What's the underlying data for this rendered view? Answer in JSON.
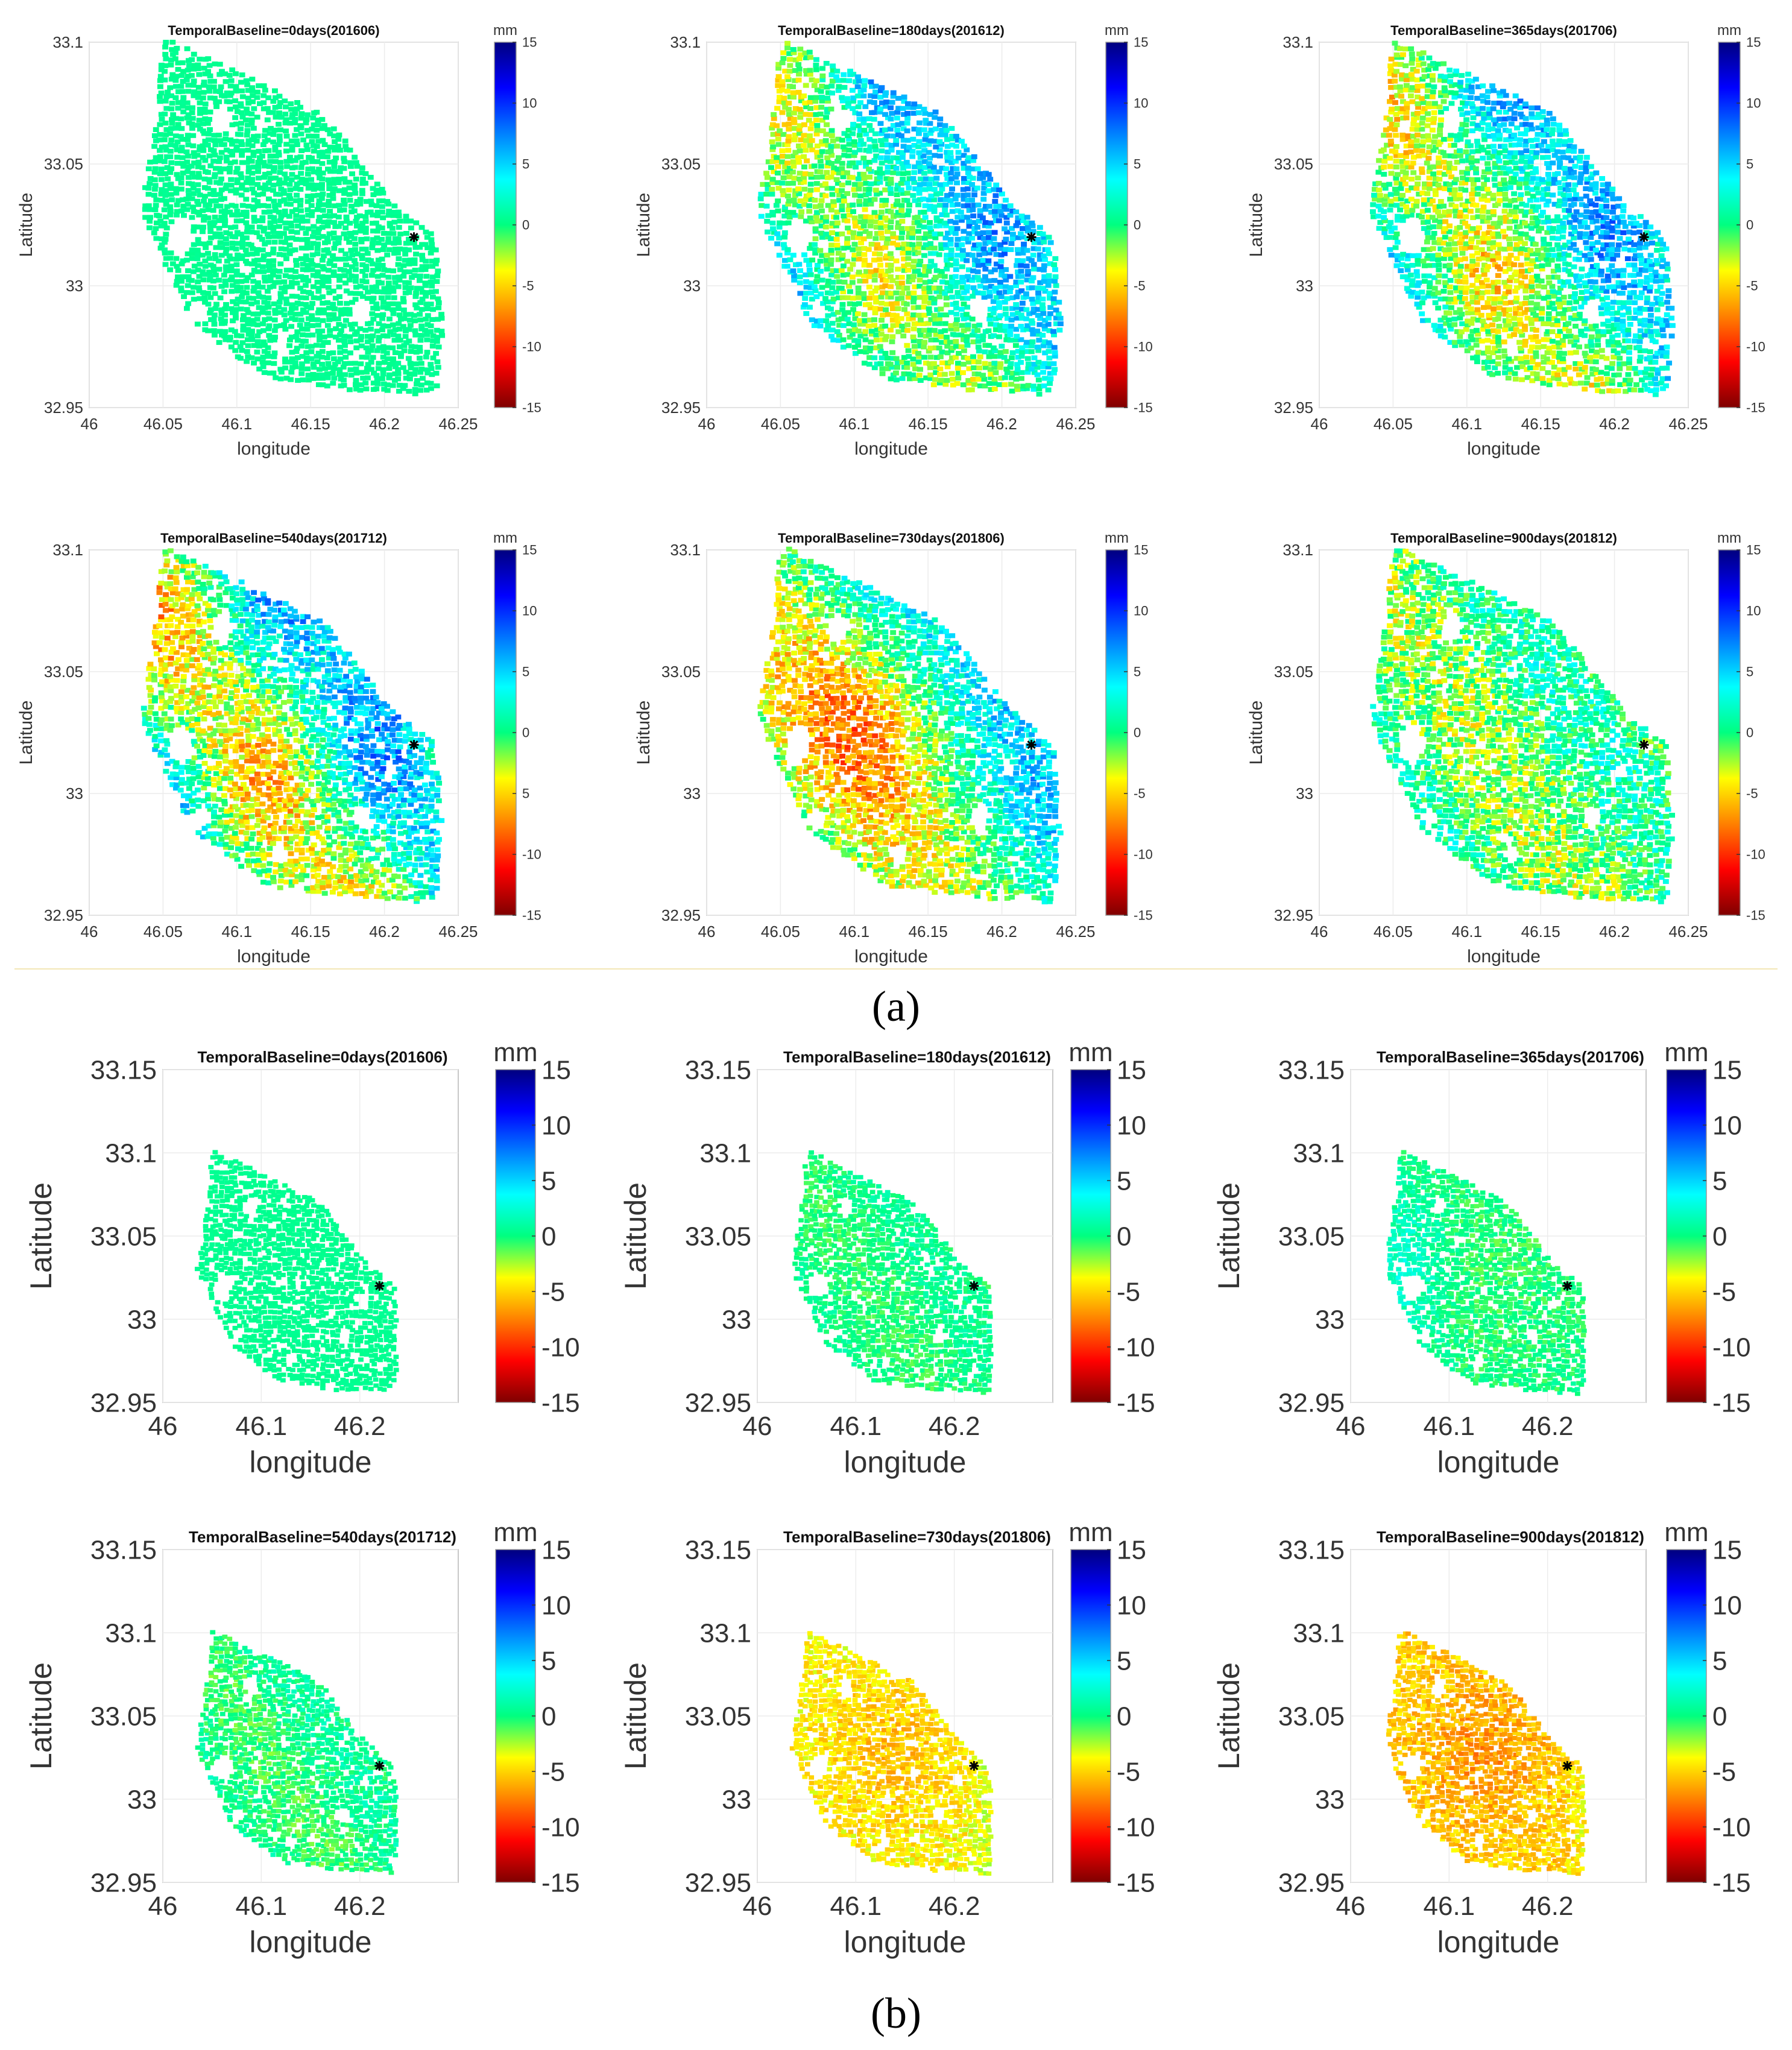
{
  "figure_labels": {
    "a": "(a)",
    "b": "(b)"
  },
  "colormap": {
    "stops": [
      "#7f0000",
      "#ff0000",
      "#ff8000",
      "#ffff00",
      "#00ff80",
      "#00ffff",
      "#0080ff",
      "#0000ff",
      "#00007f"
    ],
    "marker_color": "#000000"
  },
  "chart_data": [
    {
      "type": "heatmap",
      "panel": "a",
      "title": "TemporalBaseline=0days(201606)",
      "xlabel": "longitude",
      "ylabel": "Latitude",
      "xlim": [
        46,
        46.25
      ],
      "ylim": [
        32.95,
        33.1
      ],
      "xticks": [
        46,
        46.05,
        46.1,
        46.15,
        46.2,
        46.25
      ],
      "xticklabels": [
        "46",
        "46.05",
        "46.1",
        "46.15",
        "46.2",
        "46.25"
      ],
      "yticks": [
        32.95,
        33,
        33.05,
        33.1
      ],
      "yticklabels": [
        "32.95",
        "33",
        "33.05",
        "33.1"
      ],
      "colorbar": {
        "label": "mm",
        "range": [
          -15,
          15
        ],
        "ticks": [
          15,
          10,
          5,
          0,
          -5,
          -10,
          -15
        ],
        "ticklabels": [
          "15",
          "10",
          "5",
          "0",
          "-5",
          "-10",
          "-15"
        ]
      },
      "reference_point": [
        46.22,
        33.02
      ],
      "pattern": "uniform",
      "mean_mm": 0.5,
      "spread_mm": 0.3
    },
    {
      "type": "heatmap",
      "panel": "a",
      "title": "TemporalBaseline=180days(201612)",
      "xlabel": "longitude",
      "ylabel": "Latitude",
      "xlim": [
        46,
        46.25
      ],
      "ylim": [
        32.95,
        33.1
      ],
      "xticks": [
        46,
        46.05,
        46.1,
        46.15,
        46.2,
        46.25
      ],
      "xticklabels": [
        "46",
        "46.05",
        "46.1",
        "46.15",
        "46.2",
        "46.25"
      ],
      "yticks": [
        32.95,
        33,
        33.05,
        33.1
      ],
      "yticklabels": [
        "32.95",
        "33",
        "33.05",
        "33.1"
      ],
      "colorbar": {
        "label": "mm",
        "range": [
          -15,
          15
        ],
        "ticks": [
          15,
          10,
          5,
          0,
          -5,
          -10,
          -15
        ],
        "ticklabels": [
          "15",
          "10",
          "5",
          "0",
          "-5",
          "-10",
          "-15"
        ]
      },
      "reference_point": [
        46.22,
        33.02
      ],
      "pattern": "bands",
      "mean_mm": 1.5,
      "spread_mm": 4.5
    },
    {
      "type": "heatmap",
      "panel": "a",
      "title": "TemporalBaseline=365days(201706)",
      "xlabel": "longitude",
      "ylabel": "Latitude",
      "xlim": [
        46,
        46.25
      ],
      "ylim": [
        32.95,
        33.1
      ],
      "xticks": [
        46,
        46.05,
        46.1,
        46.15,
        46.2,
        46.25
      ],
      "xticklabels": [
        "46",
        "46.05",
        "46.1",
        "46.15",
        "46.2",
        "46.25"
      ],
      "yticks": [
        32.95,
        33,
        33.05,
        33.1
      ],
      "yticklabels": [
        "32.95",
        "33",
        "33.05",
        "33.1"
      ],
      "colorbar": {
        "label": "mm",
        "range": [
          -15,
          15
        ],
        "ticks": [
          15,
          10,
          5,
          0,
          -5,
          -10,
          -15
        ],
        "ticklabels": [
          "15",
          "10",
          "5",
          "0",
          "-5",
          "-10",
          "-15"
        ]
      },
      "reference_point": [
        46.22,
        33.02
      ],
      "pattern": "bands",
      "mean_mm": 1.0,
      "spread_mm": 5.0
    },
    {
      "type": "heatmap",
      "panel": "a",
      "title": "TemporalBaseline=540days(201712)",
      "xlabel": "longitude",
      "ylabel": "Latitude",
      "xlim": [
        46,
        46.25
      ],
      "ylim": [
        32.95,
        33.1
      ],
      "xticks": [
        46,
        46.05,
        46.1,
        46.15,
        46.2,
        46.25
      ],
      "xticklabels": [
        "46",
        "46.05",
        "46.1",
        "46.15",
        "46.2",
        "46.25"
      ],
      "yticks": [
        32.95,
        33,
        33.05,
        33.1
      ],
      "yticklabels": [
        "32.95",
        "33",
        "33.05",
        "33.1"
      ],
      "colorbar": {
        "label": "mm",
        "range": [
          -15,
          15
        ],
        "ticks": [
          15,
          10,
          5,
          0,
          5,
          -10,
          -15
        ],
        "ticklabels": [
          "15",
          "10",
          "5",
          "0",
          "5",
          "-10",
          "-15"
        ]
      },
      "reference_point": [
        46.22,
        33.02
      ],
      "pattern": "bands",
      "mean_mm": 0.5,
      "spread_mm": 5.5
    },
    {
      "type": "heatmap",
      "panel": "a",
      "title": "TemporalBaseline=730days(201806)",
      "xlabel": "longitude",
      "ylabel": "Latitude",
      "xlim": [
        46,
        46.25
      ],
      "ylim": [
        32.95,
        33.1
      ],
      "xticks": [
        46,
        46.05,
        46.1,
        46.15,
        46.2,
        46.25
      ],
      "xticklabels": [
        "46",
        "46.05",
        "46.1",
        "46.15",
        "46.2",
        "46.25"
      ],
      "yticks": [
        32.95,
        33,
        33.05,
        33.1
      ],
      "yticklabels": [
        "32.95",
        "33",
        "33.05",
        "33.1"
      ],
      "colorbar": {
        "label": "mm",
        "range": [
          -15,
          15
        ],
        "ticks": [
          15,
          10,
          5,
          0,
          -5,
          -10,
          -15
        ],
        "ticklabels": [
          "15",
          "10",
          "5",
          "0",
          "-5",
          "-10",
          "-15"
        ]
      },
      "reference_point": [
        46.22,
        33.02
      ],
      "pattern": "centre",
      "mean_mm": 1.0,
      "spread_mm": 5.0
    },
    {
      "type": "heatmap",
      "panel": "a",
      "title": "TemporalBaseline=900days(201812)",
      "xlabel": "longitude",
      "ylabel": "Latitude",
      "xlim": [
        46,
        46.25
      ],
      "ylim": [
        32.95,
        33.1
      ],
      "xticks": [
        46,
        46.05,
        46.1,
        46.15,
        46.2,
        46.25
      ],
      "xticklabels": [
        "46",
        "46.05",
        "46.1",
        "46.15",
        "46.2",
        "46.25"
      ],
      "yticks": [
        32.95,
        33,
        33.05,
        33.1
      ],
      "yticklabels": [
        "32.95",
        "33",
        "33.05",
        "33.1"
      ],
      "colorbar": {
        "label": "mm",
        "range": [
          -15,
          15
        ],
        "ticks": [
          15,
          10,
          5,
          0,
          -5,
          -10,
          -15
        ],
        "ticklabels": [
          "15",
          "10",
          "5",
          "0",
          "-5",
          "-10",
          "-15"
        ]
      },
      "reference_point": [
        46.22,
        33.02
      ],
      "pattern": "noisy",
      "mean_mm": -0.5,
      "spread_mm": 5.5
    },
    {
      "type": "heatmap",
      "panel": "b",
      "title": "TemporalBaseline=0days(201606)",
      "xlabel": "longitude",
      "ylabel": "Latitude",
      "xlim": [
        46,
        46.3
      ],
      "ylim": [
        32.95,
        33.15
      ],
      "xticks": [
        46,
        46.1,
        46.2
      ],
      "xticklabels": [
        "46",
        "46.1",
        "46.2"
      ],
      "yticks": [
        32.95,
        33,
        33.05,
        33.1,
        33.15
      ],
      "yticklabels": [
        "32.95",
        "33",
        "33.05",
        "33.1",
        "33.15"
      ],
      "colorbar": {
        "label": "mm",
        "range": [
          -15,
          15
        ],
        "ticks": [
          15,
          10,
          5,
          0,
          -5,
          -10,
          -15
        ],
        "ticklabels": [
          "15",
          "10",
          "5",
          "0",
          "-5",
          "-10",
          "-15"
        ]
      },
      "reference_point": [
        46.22,
        33.02
      ],
      "pattern": "uniform",
      "mean_mm": 0.5,
      "spread_mm": 0.3
    },
    {
      "type": "heatmap",
      "panel": "b",
      "title": "TemporalBaseline=180days(201612)",
      "xlabel": "longitude",
      "ylabel": "Latitude",
      "xlim": [
        46,
        46.3
      ],
      "ylim": [
        32.95,
        33.15
      ],
      "xticks": [
        46,
        46.1,
        46.2
      ],
      "xticklabels": [
        "46",
        "46.1",
        "46.2"
      ],
      "yticks": [
        32.95,
        33,
        33.05,
        33.1,
        33.15
      ],
      "yticklabels": [
        "32.95",
        "33",
        "33.05",
        "33.1",
        "33.15"
      ],
      "colorbar": {
        "label": "mm",
        "range": [
          -15,
          15
        ],
        "ticks": [
          15,
          10,
          5,
          0,
          -5,
          -10,
          -15
        ],
        "ticklabels": [
          "15",
          "10",
          "5",
          "0",
          "-5",
          "-10",
          "-15"
        ]
      },
      "reference_point": [
        46.22,
        33.02
      ],
      "pattern": "noisy",
      "mean_mm": 0.0,
      "spread_mm": 1.8
    },
    {
      "type": "heatmap",
      "panel": "b",
      "title": "TemporalBaseline=365days(201706)",
      "xlabel": "longitude",
      "ylabel": "Latitude",
      "xlim": [
        46,
        46.3
      ],
      "ylim": [
        32.95,
        33.15
      ],
      "xticks": [
        46,
        46.1,
        46.2
      ],
      "xticklabels": [
        "46",
        "46.1",
        "46.2"
      ],
      "yticks": [
        32.95,
        33,
        33.05,
        33.1,
        33.15
      ],
      "yticklabels": [
        "32.95",
        "33",
        "33.05",
        "33.1",
        "33.15"
      ],
      "colorbar": {
        "label": "mm",
        "range": [
          -15,
          15
        ],
        "ticks": [
          15,
          10,
          5,
          0,
          -5,
          -10,
          -15
        ],
        "ticklabels": [
          "15",
          "10",
          "5",
          "0",
          "-5",
          "-10",
          "-15"
        ]
      },
      "reference_point": [
        46.22,
        33.02
      ],
      "pattern": "west-high",
      "mean_mm": 0.0,
      "spread_mm": 2.2
    },
    {
      "type": "heatmap",
      "panel": "b",
      "title": "TemporalBaseline=540days(201712)",
      "xlabel": "longitude",
      "ylabel": "Latitude",
      "xlim": [
        46,
        46.3
      ],
      "ylim": [
        32.95,
        33.15
      ],
      "xticks": [
        46,
        46.1,
        46.2
      ],
      "xticklabels": [
        "46",
        "46.1",
        "46.2"
      ],
      "yticks": [
        32.95,
        33,
        33.05,
        33.1,
        33.15
      ],
      "yticklabels": [
        "32.95",
        "33",
        "33.05",
        "33.1",
        "33.15"
      ],
      "colorbar": {
        "label": "mm",
        "range": [
          -15,
          15
        ],
        "ticks": [
          15,
          10,
          5,
          0,
          -5,
          -10,
          -15
        ],
        "ticklabels": [
          "15",
          "10",
          "5",
          "0",
          "-5",
          "-10",
          "-15"
        ]
      },
      "reference_point": [
        46.22,
        33.02
      ],
      "pattern": "noisy",
      "mean_mm": 0.0,
      "spread_mm": 2.5
    },
    {
      "type": "heatmap",
      "panel": "b",
      "title": "TemporalBaseline=730days(201806)",
      "xlabel": "longitude",
      "ylabel": "Latitude",
      "xlim": [
        46,
        46.3
      ],
      "ylim": [
        32.95,
        33.15
      ],
      "xticks": [
        46,
        46.1,
        46.2
      ],
      "xticklabels": [
        "46",
        "46.1",
        "46.2"
      ],
      "yticks": [
        32.95,
        33,
        33.05,
        33.1,
        33.15
      ],
      "yticklabels": [
        "32.95",
        "33",
        "33.05",
        "33.1",
        "33.15"
      ],
      "colorbar": {
        "label": "mm",
        "range": [
          -15,
          15
        ],
        "ticks": [
          15,
          10,
          5,
          0,
          -5,
          -10,
          -15
        ],
        "ticklabels": [
          "15",
          "10",
          "5",
          "0",
          "-5",
          "-10",
          "-15"
        ]
      },
      "reference_point": [
        46.22,
        33.02
      ],
      "pattern": "centre-low",
      "mean_mm": -4.0,
      "spread_mm": 2.5
    },
    {
      "type": "heatmap",
      "panel": "b",
      "title": "TemporalBaseline=900days(201812)",
      "xlabel": "longitude",
      "ylabel": "Latitude",
      "xlim": [
        46,
        46.3
      ],
      "ylim": [
        32.95,
        33.15
      ],
      "xticks": [
        46,
        46.1,
        46.2
      ],
      "xticklabels": [
        "46",
        "46.1",
        "46.2"
      ],
      "yticks": [
        32.95,
        33,
        33.05,
        33.1,
        33.15
      ],
      "yticklabels": [
        "32.95",
        "33",
        "33.05",
        "33.1",
        "33.15"
      ],
      "colorbar": {
        "label": "mm",
        "range": [
          -15,
          15
        ],
        "ticks": [
          15,
          10,
          5,
          0,
          -5,
          -10,
          -15
        ],
        "ticklabels": [
          "15",
          "10",
          "5",
          "0",
          "-5",
          "-10",
          "-15"
        ]
      },
      "reference_point": [
        46.22,
        33.02
      ],
      "pattern": "centre-low",
      "mean_mm": -5.0,
      "spread_mm": 2.8
    }
  ]
}
